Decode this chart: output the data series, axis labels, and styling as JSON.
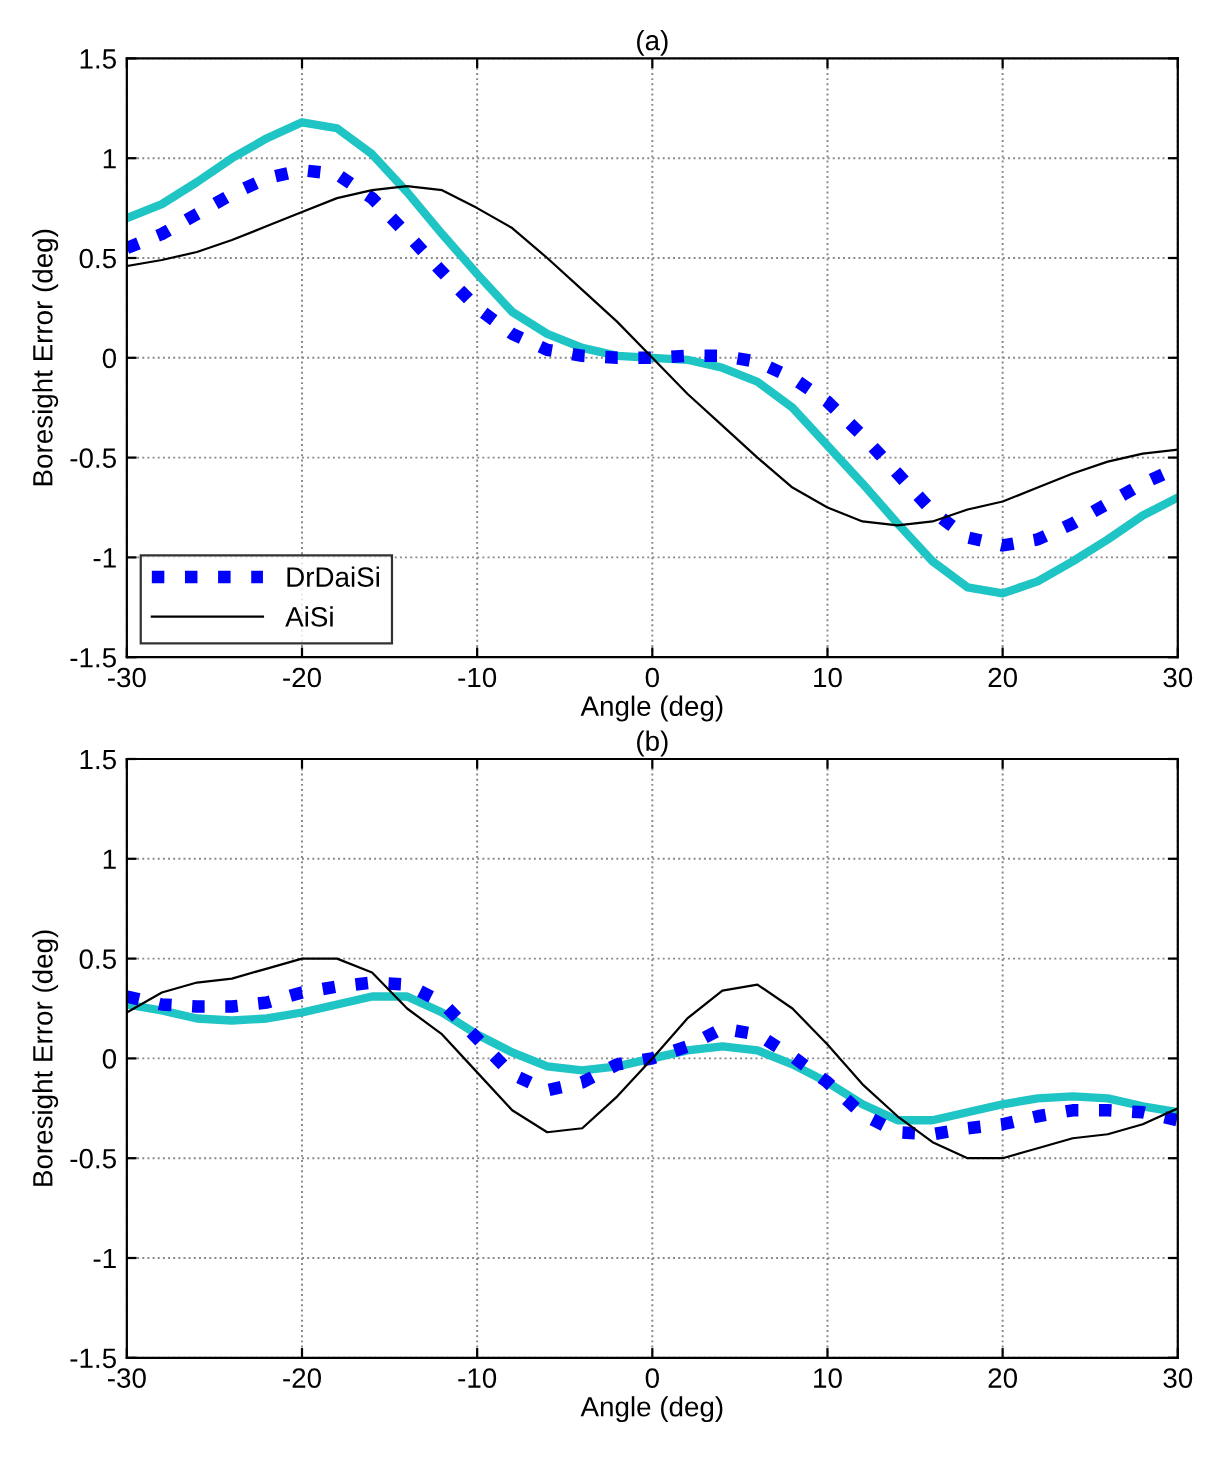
{
  "chart_data": [
    {
      "type": "line",
      "title": "(a)",
      "xlabel": "Angle (deg)",
      "ylabel": "Boresight Error (deg)",
      "xlim": [
        -30,
        30
      ],
      "ylim": [
        -1.5,
        1.5
      ],
      "xticks": [
        -30,
        -20,
        -10,
        0,
        10,
        20,
        30
      ],
      "yticks": [
        -1.5,
        -1,
        -0.5,
        0,
        0.5,
        1,
        1.5
      ],
      "grid": true,
      "legend": "bottom left",
      "x": [
        -30,
        -28,
        -26,
        -24,
        -22,
        -20,
        -18,
        -16,
        -14,
        -12,
        -10,
        -8,
        -6,
        -4,
        -2,
        0,
        2,
        4,
        6,
        8,
        10,
        12,
        14,
        16,
        18,
        20,
        22,
        24,
        26,
        28,
        30
      ],
      "series": [
        {
          "color": "#1fc4c4",
          "line_style": "solid",
          "values": [
            0.7,
            0.77,
            0.88,
            1.0,
            1.1,
            1.18,
            1.15,
            1.02,
            0.83,
            0.62,
            0.42,
            0.23,
            0.12,
            0.05,
            0.01,
            0,
            -0.01,
            -0.05,
            -0.12,
            -0.25,
            -0.44,
            -0.63,
            -0.83,
            -1.02,
            -1.15,
            -1.18,
            -1.12,
            -1.02,
            -0.91,
            -0.79,
            -0.7
          ]
        },
        {
          "name": "DrDaiSi",
          "color": "#0000ff",
          "line_style": "dotted",
          "values": [
            0.55,
            0.62,
            0.72,
            0.82,
            0.9,
            0.94,
            0.92,
            0.8,
            0.62,
            0.43,
            0.25,
            0.12,
            0.04,
            0.01,
            0,
            0,
            0.01,
            0.01,
            -0.02,
            -0.1,
            -0.22,
            -0.39,
            -0.58,
            -0.77,
            -0.9,
            -0.94,
            -0.91,
            -0.83,
            -0.73,
            -0.63,
            -0.55
          ]
        },
        {
          "name": "AiSi",
          "color": "#000000",
          "line_style": "solid",
          "values": [
            0.46,
            0.49,
            0.53,
            0.59,
            0.66,
            0.73,
            0.8,
            0.84,
            0.86,
            0.84,
            0.75,
            0.65,
            0.5,
            0.34,
            0.18,
            0,
            -0.18,
            -0.34,
            -0.5,
            -0.65,
            -0.75,
            -0.82,
            -0.84,
            -0.82,
            -0.76,
            -0.72,
            -0.65,
            -0.58,
            -0.52,
            -0.48,
            -0.46
          ]
        }
      ]
    },
    {
      "type": "line",
      "title": "(b)",
      "xlabel": "Angle (deg)",
      "ylabel": "Boresight Error (deg)",
      "xlim": [
        -30,
        30
      ],
      "ylim": [
        -1.5,
        1.5
      ],
      "xticks": [
        -30,
        -20,
        -10,
        0,
        10,
        20,
        30
      ],
      "yticks": [
        -1.5,
        -1,
        -0.5,
        0,
        0.5,
        1,
        1.5
      ],
      "grid": true,
      "x": [
        -30,
        -28,
        -26,
        -24,
        -22,
        -20,
        -18,
        -16,
        -14,
        -12,
        -10,
        -8,
        -6,
        -4,
        -2,
        0,
        2,
        4,
        6,
        8,
        10,
        12,
        14,
        16,
        18,
        20,
        22,
        24,
        26,
        28,
        30
      ],
      "series": [
        {
          "color": "#1fc4c4",
          "line_style": "solid",
          "values": [
            0.27,
            0.24,
            0.2,
            0.19,
            0.2,
            0.23,
            0.27,
            0.31,
            0.31,
            0.23,
            0.12,
            0.03,
            -0.04,
            -0.06,
            -0.04,
            0,
            0.04,
            0.06,
            0.04,
            -0.03,
            -0.12,
            -0.23,
            -0.31,
            -0.31,
            -0.27,
            -0.23,
            -0.2,
            -0.19,
            -0.2,
            -0.24,
            -0.27
          ]
        },
        {
          "color": "#0000ff",
          "line_style": "dotted",
          "values": [
            0.31,
            0.27,
            0.26,
            0.26,
            0.28,
            0.33,
            0.36,
            0.38,
            0.37,
            0.28,
            0.1,
            -0.08,
            -0.16,
            -0.12,
            -0.03,
            0,
            0.06,
            0.15,
            0.12,
            0.01,
            -0.12,
            -0.28,
            -0.37,
            -0.38,
            -0.35,
            -0.33,
            -0.29,
            -0.26,
            -0.26,
            -0.27,
            -0.31
          ]
        },
        {
          "color": "#000000",
          "line_style": "solid",
          "values": [
            0.23,
            0.33,
            0.38,
            0.4,
            0.45,
            0.5,
            0.5,
            0.43,
            0.25,
            0.12,
            -0.07,
            -0.26,
            -0.37,
            -0.35,
            -0.19,
            0,
            0.2,
            0.34,
            0.37,
            0.25,
            0.07,
            -0.13,
            -0.29,
            -0.42,
            -0.5,
            -0.5,
            -0.45,
            -0.4,
            -0.38,
            -0.33,
            -0.25
          ]
        }
      ]
    }
  ]
}
